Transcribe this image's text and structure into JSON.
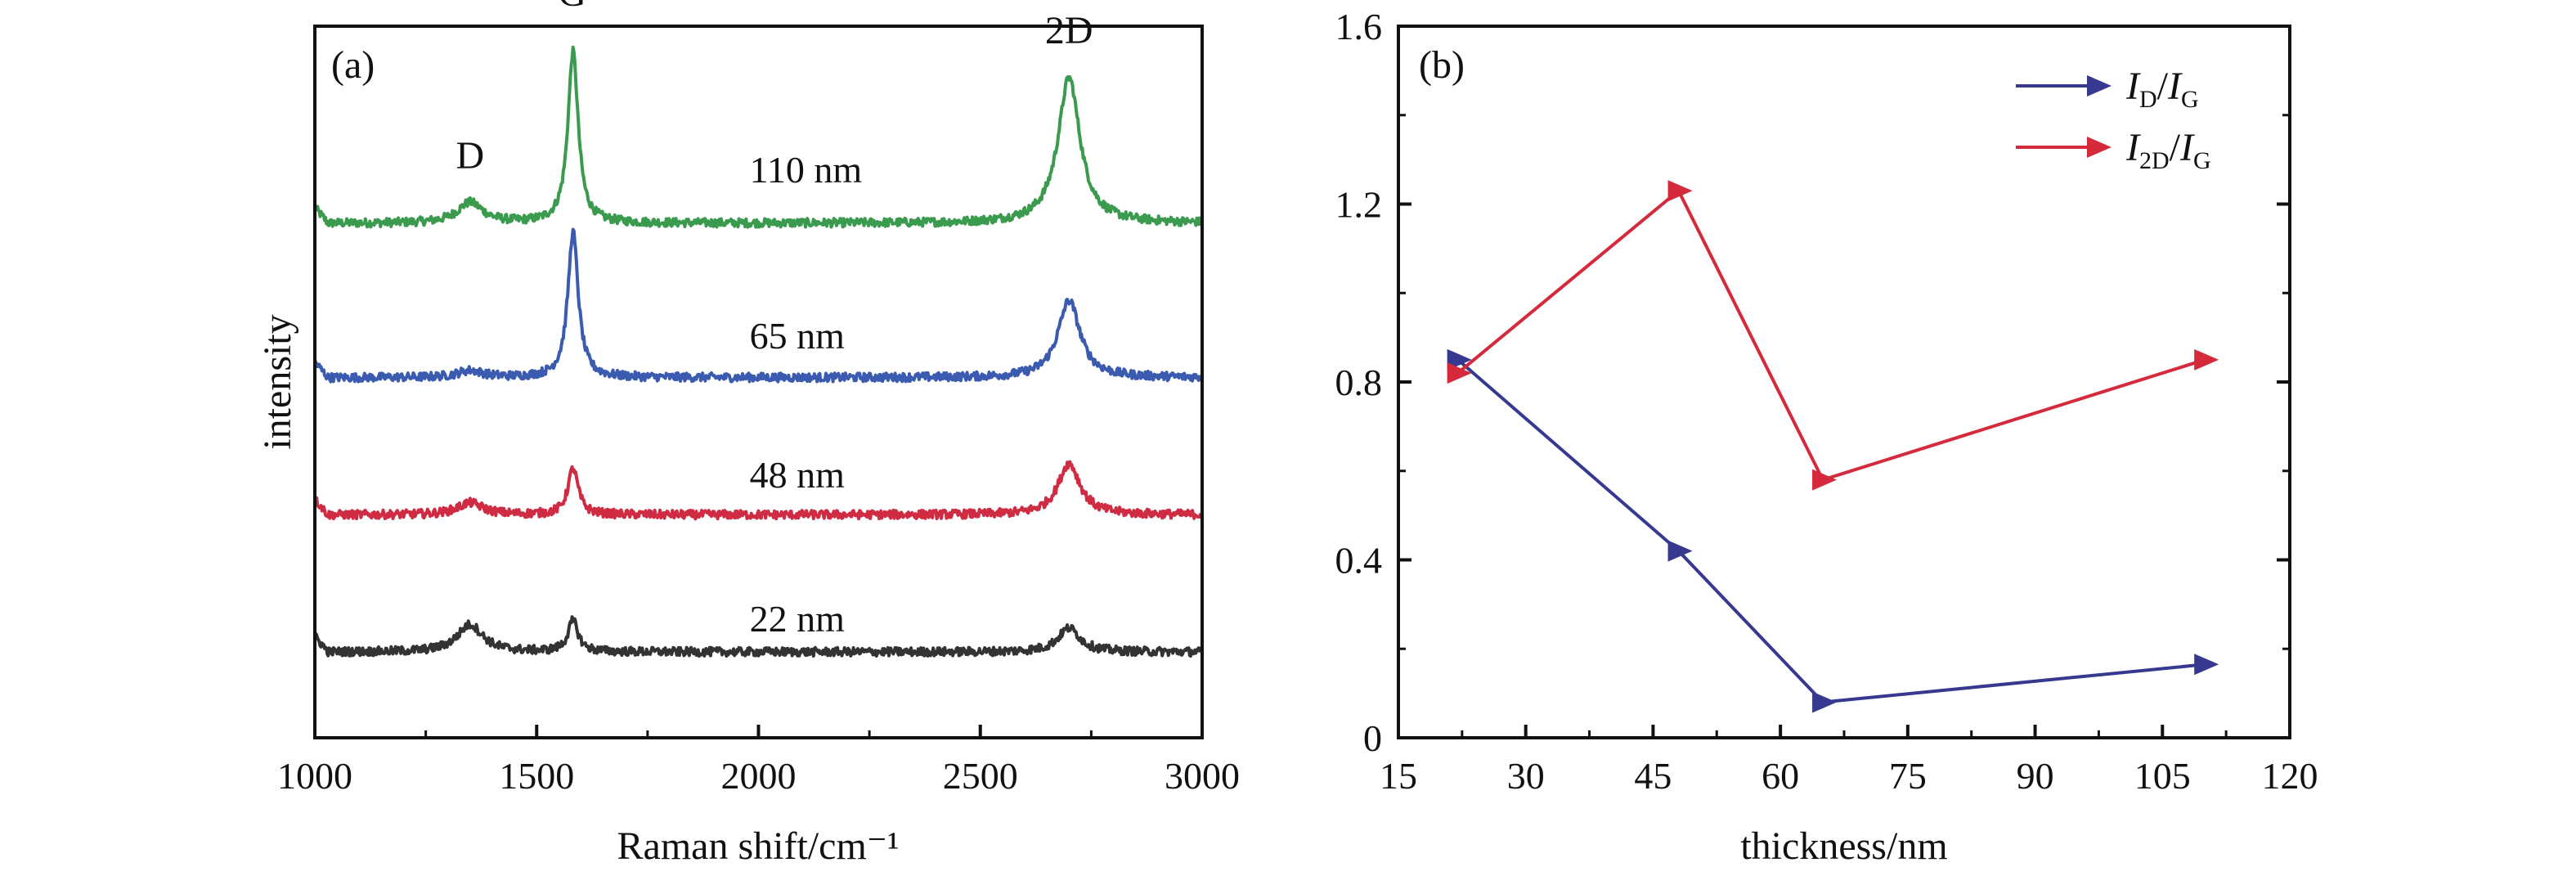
{
  "chart_data": [
    {
      "type": "line",
      "panel_label": "(a)",
      "xlabel": "Raman shift/cm⁻¹",
      "ylabel": "intensity",
      "xlim": [
        1000,
        3000
      ],
      "x_ticks": [
        "1000",
        "1500",
        "2000",
        "2500",
        "3000"
      ],
      "y_ticks_visible": false,
      "grid": false,
      "peak_labels": [
        {
          "text": "D",
          "x": 1350
        },
        {
          "text": "G",
          "x": 1580
        },
        {
          "text": "2D",
          "x": 2700
        }
      ],
      "series": [
        {
          "name": "110 nm",
          "color": "#3a9a4e",
          "offset": 3.0,
          "baseline": 0.0,
          "d_peak": 0.12,
          "g_peak": 1.0,
          "twod_peak": 0.85
        },
        {
          "name": "65 nm",
          "color": "#3a5bb0",
          "offset": 2.1,
          "baseline": 0.0,
          "d_peak": 0.04,
          "g_peak": 0.85,
          "twod_peak": 0.45
        },
        {
          "name": "48 nm",
          "color": "#cf2c44",
          "offset": 1.3,
          "baseline": 0.0,
          "d_peak": 0.07,
          "g_peak": 0.27,
          "twod_peak": 0.3
        },
        {
          "name": "22 nm",
          "color": "#333333",
          "offset": 0.5,
          "baseline": 0.0,
          "d_peak": 0.16,
          "g_peak": 0.18,
          "twod_peak": 0.14
        }
      ]
    },
    {
      "type": "line",
      "panel_label": "(b)",
      "xlabel": "thickness/nm",
      "ylabel": "",
      "xlim": [
        15,
        120
      ],
      "ylim": [
        0,
        1.6
      ],
      "x_ticks": [
        "15",
        "30",
        "45",
        "60",
        "75",
        "90",
        "105",
        "120"
      ],
      "y_ticks": [
        "0",
        "0.4",
        "0.8",
        "1.2",
        "1.6"
      ],
      "grid": false,
      "legend_position": "top-right",
      "x": [
        22,
        48,
        65,
        110
      ],
      "series": [
        {
          "name": "ID/IG",
          "label_main_1": "I",
          "label_sub_1": "D",
          "label_sep": "/",
          "label_main_2": "I",
          "label_sub_2": "G",
          "color": "#36398f",
          "values": [
            0.85,
            0.42,
            0.08,
            0.165
          ]
        },
        {
          "name": "I2D/IG",
          "label_main_1": "I",
          "label_sub_1": "2D",
          "label_sep": "/",
          "label_main_2": "I",
          "label_sub_2": "G",
          "color": "#d42a3c",
          "values": [
            0.82,
            1.23,
            0.58,
            0.85
          ]
        }
      ]
    }
  ]
}
